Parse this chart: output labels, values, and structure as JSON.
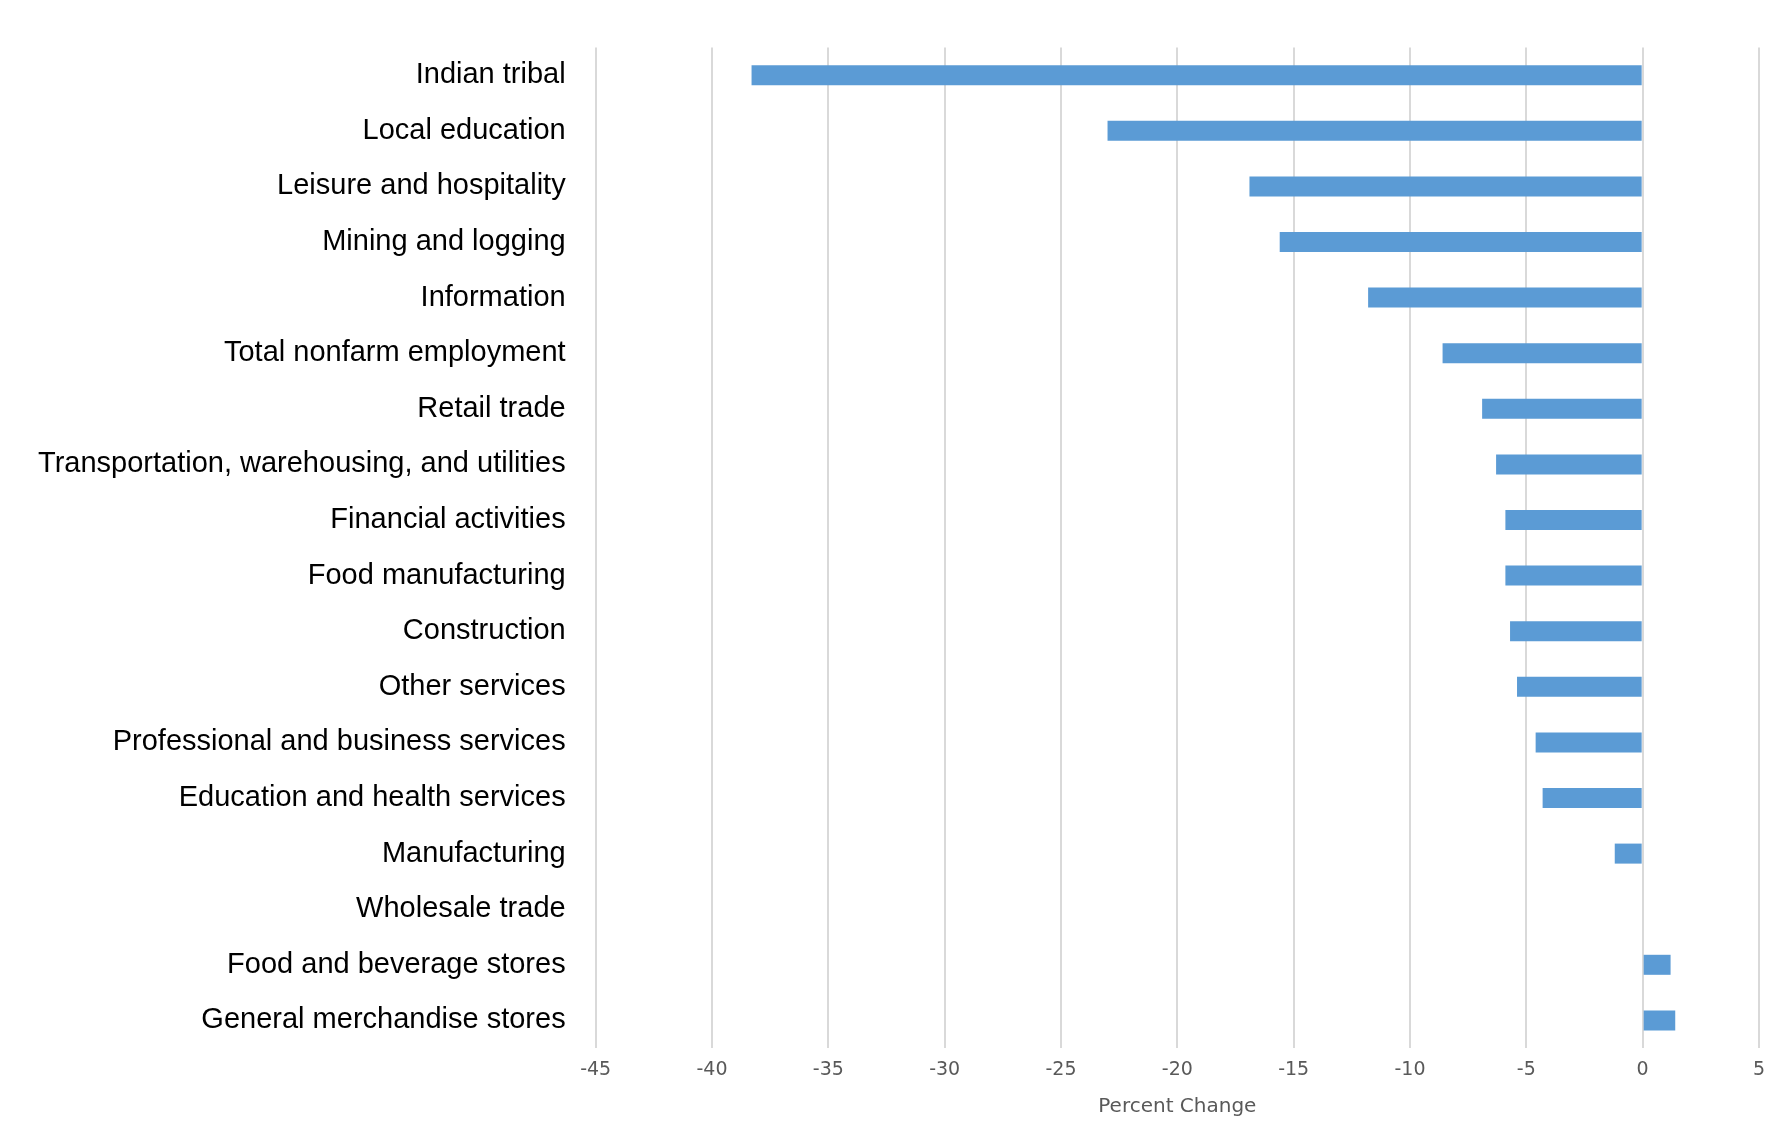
{
  "chart_data": {
    "type": "bar",
    "orientation": "horizontal",
    "xlabel": "Percent Change",
    "categories": [
      "Indian tribal",
      "Local education",
      "Leisure and hospitality",
      "Mining and logging",
      "Information",
      "Total nonfarm employment",
      "Retail trade",
      "Transportation, warehousing, and utilities",
      "Financial activities",
      "Food manufacturing",
      "Construction",
      "Other services",
      "Professional and business services",
      "Education and health services",
      "Manufacturing",
      "Wholesale trade",
      "Food and beverage stores",
      "General merchandise stores"
    ],
    "values": [
      -38.3,
      -23,
      -16.9,
      -15.6,
      -11.8,
      -8.6,
      -6.9,
      -6.3,
      -5.9,
      -5.9,
      -5.7,
      -5.4,
      -4.6,
      -4.3,
      -1.2,
      0,
      1.2,
      1.4
    ],
    "color": "#5b9bd5",
    "xlim": [
      -45,
      5
    ],
    "xticks": [
      -45,
      -40,
      -35,
      -30,
      -25,
      -20,
      -15,
      -10,
      -5,
      0,
      5
    ],
    "grid": "x"
  }
}
